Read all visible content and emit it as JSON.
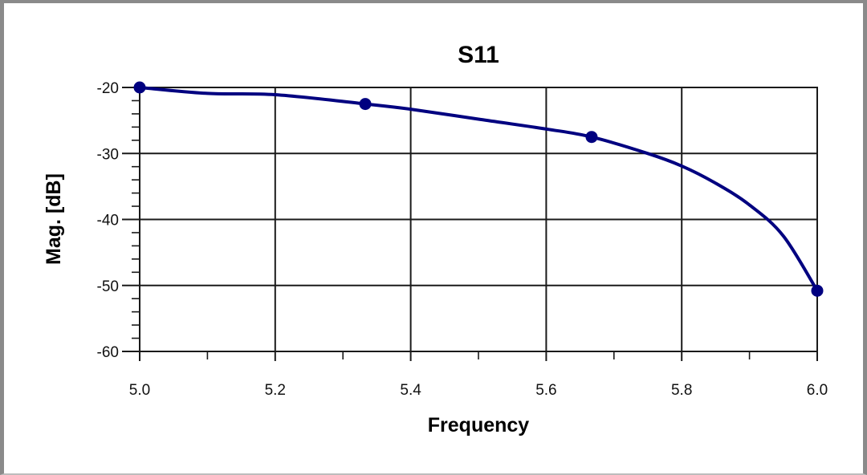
{
  "chart_data": {
    "type": "line",
    "title": "S11",
    "xlabel": "Frequency",
    "ylabel": "Mag. [dB]",
    "xlim": [
      5.0,
      6.0
    ],
    "ylim": [
      -60,
      -20
    ],
    "x_ticks": [
      "5.0",
      "5.2",
      "5.4",
      "5.6",
      "5.8",
      "6.0"
    ],
    "y_ticks": [
      "-20",
      "-30",
      "-40",
      "-50",
      "-60"
    ],
    "grid": true,
    "line_color": "#000080",
    "series": [
      {
        "x": [
          5.0,
          5.1,
          5.2,
          5.333,
          5.4,
          5.5,
          5.6,
          5.667,
          5.75,
          5.8,
          5.85,
          5.9,
          5.95,
          6.0
        ],
        "y": [
          -20,
          -20.9,
          -21.1,
          -22.5,
          -23.3,
          -24.8,
          -26.3,
          -27.5,
          -30.0,
          -31.9,
          -34.5,
          -37.8,
          -42.5,
          -50.8
        ],
        "markers": [
          {
            "x": 5.0,
            "y": -20
          },
          {
            "x": 5.333,
            "y": -22.5
          },
          {
            "x": 5.667,
            "y": -27.5
          },
          {
            "x": 6.0,
            "y": -50.8
          }
        ]
      }
    ]
  }
}
